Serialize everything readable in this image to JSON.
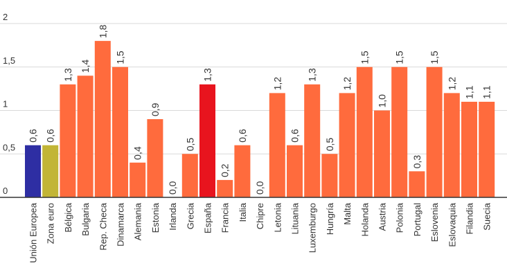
{
  "colors": {
    "default": "#FF6B3D",
    "highlight_eu": "#2E2EA3",
    "highlight_euro": "#C2B536",
    "highlight_es": "#E8141E"
  },
  "chart_data": {
    "type": "bar",
    "title": "",
    "xlabel": "",
    "ylabel": "",
    "ylim": [
      0,
      2
    ],
    "y_ticks": [
      "0",
      "0,5",
      "1",
      "1,5",
      "2"
    ],
    "y_tick_values": [
      0,
      0.5,
      1,
      1.5,
      2
    ],
    "grid": true,
    "legend": "none",
    "categories": [
      "Unión Europea",
      "Zona euro",
      "Bélgica",
      "Bulgaria",
      "Rep. Checa",
      "Dinamarca",
      "Alemania",
      "Estonia",
      "Irlanda",
      "Grecia",
      "España",
      "Francia",
      "Italia",
      "Chipre",
      "Letonia",
      "Lituania",
      "Luxemburgo",
      "Hungría",
      "Malta",
      "Holanda",
      "Austria",
      "Polonia",
      "Portugal",
      "Eslovenia",
      "Eslovaquia",
      "Filandia",
      "Suecia"
    ],
    "values": [
      0.6,
      0.6,
      1.3,
      1.4,
      1.8,
      1.5,
      0.4,
      0.9,
      0.0,
      0.5,
      1.3,
      0.2,
      0.6,
      0.0,
      1.2,
      0.6,
      1.3,
      0.5,
      1.2,
      1.5,
      1.0,
      1.5,
      0.3,
      1.5,
      1.2,
      1.1,
      1.1
    ],
    "value_labels": [
      "0,6",
      "0,6",
      "1,3",
      "1,4",
      "1,8",
      "1,5",
      "0,4",
      "0,9",
      "0,0",
      "0,5",
      "1,3",
      "0,2",
      "0,6",
      "0,0",
      "1,2",
      "0,6",
      "1,3",
      "0,5",
      "1,2",
      "1,5",
      "1,0",
      "1,5",
      "0,3",
      "1,5",
      "1,2",
      "1,1",
      "1,1"
    ],
    "bar_colors": [
      "highlight_eu",
      "highlight_euro",
      "default",
      "default",
      "default",
      "default",
      "default",
      "default",
      "default",
      "default",
      "highlight_es",
      "default",
      "default",
      "default",
      "default",
      "default",
      "default",
      "default",
      "default",
      "default",
      "default",
      "default",
      "default",
      "default",
      "default",
      "default",
      "default"
    ]
  }
}
